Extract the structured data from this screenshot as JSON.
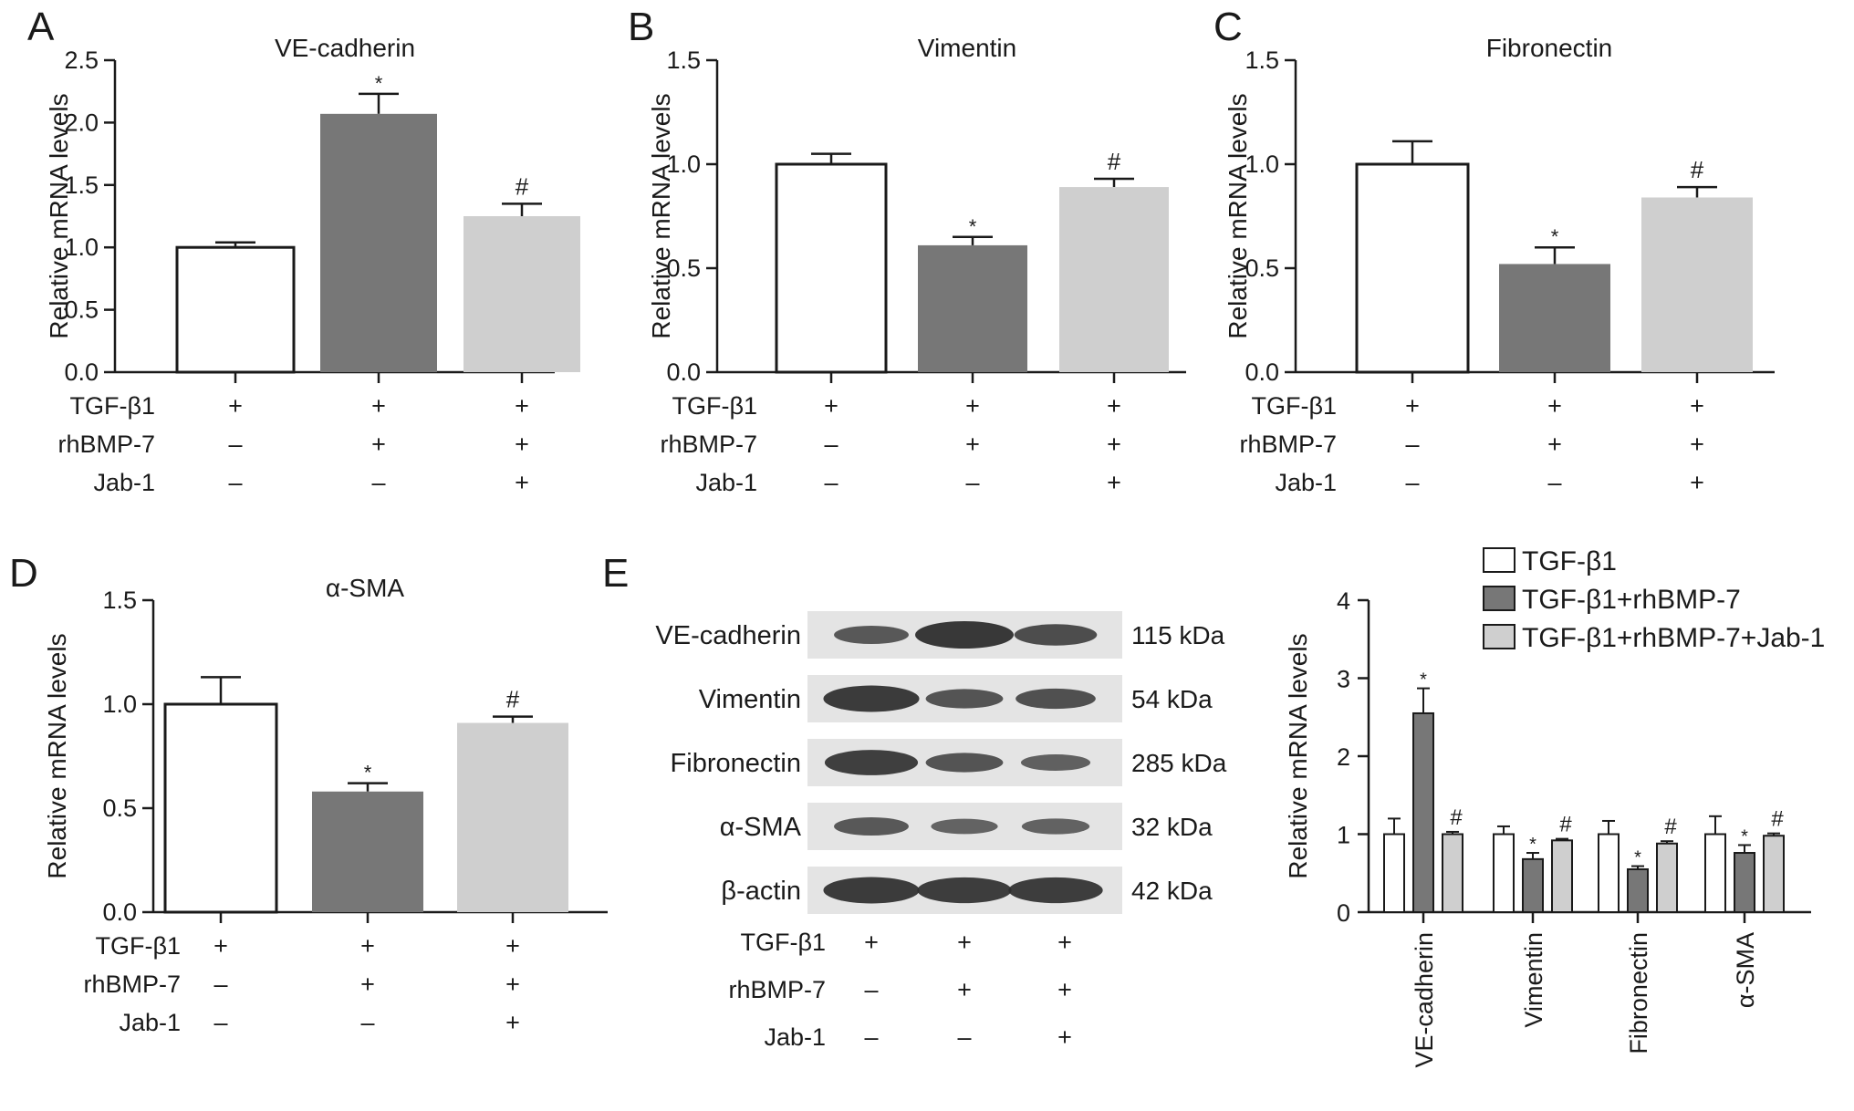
{
  "colors": {
    "white_bar": "#ffffff",
    "dark_bar": "#777777",
    "light_bar": "#cfcfcf",
    "axis": "#1a1a1a",
    "band": "#2e2e2e",
    "blot_bg": "#e4e4e4"
  },
  "condition_labels": [
    "TGF-β1",
    "rhBMP-7",
    "Jab-1"
  ],
  "condition_signs": [
    [
      "+",
      "+",
      "+"
    ],
    [
      "–",
      "+",
      "+"
    ],
    [
      "–",
      "–",
      "+"
    ]
  ],
  "chart_data": [
    {
      "panel": "A",
      "type": "bar",
      "title": "VE-cadherin",
      "ylabel": "Relative mRNA levels",
      "ylim": [
        0,
        2.5
      ],
      "yticks": [
        "0.0",
        "0.5",
        "1.0",
        "1.5",
        "2.0",
        "2.5"
      ],
      "values": [
        1.0,
        2.07,
        1.25
      ],
      "errors": [
        0.04,
        0.16,
        0.1
      ],
      "marks": [
        "",
        "*",
        "#"
      ]
    },
    {
      "panel": "B",
      "type": "bar",
      "title": "Vimentin",
      "ylabel": "Relative mRNA levels",
      "ylim": [
        0,
        1.5
      ],
      "yticks": [
        "0.0",
        "0.5",
        "1.0",
        "1.5"
      ],
      "values": [
        1.0,
        0.61,
        0.89
      ],
      "errors": [
        0.05,
        0.04,
        0.04
      ],
      "marks": [
        "",
        "*",
        "#"
      ]
    },
    {
      "panel": "C",
      "type": "bar",
      "title": "Fibronectin",
      "ylabel": "Relative mRNA levels",
      "ylim": [
        0,
        1.5
      ],
      "yticks": [
        "0.0",
        "0.5",
        "1.0",
        "1.5"
      ],
      "values": [
        1.0,
        0.52,
        0.84
      ],
      "errors": [
        0.11,
        0.08,
        0.05
      ],
      "marks": [
        "",
        "*",
        "#"
      ]
    },
    {
      "panel": "D",
      "type": "bar",
      "title": "α-SMA",
      "ylabel": "Relative mRNA levels",
      "ylim": [
        0,
        1.5
      ],
      "yticks": [
        "0.0",
        "0.5",
        "1.0",
        "1.5"
      ],
      "values": [
        1.0,
        0.58,
        0.91
      ],
      "errors": [
        0.13,
        0.04,
        0.03
      ],
      "marks": [
        "",
        "*",
        "#"
      ]
    },
    {
      "panel": "E",
      "type": "bar",
      "title": "",
      "ylabel": "Relative mRNA levels",
      "ylim": [
        0,
        4
      ],
      "yticks": [
        "0",
        "1",
        "2",
        "3",
        "4"
      ],
      "categories": [
        "VE-cadherin",
        "Vimentin",
        "Fibronectin",
        "α-SMA"
      ],
      "series": [
        {
          "name": "TGF-β1",
          "values": [
            1.0,
            1.0,
            1.0,
            1.0
          ],
          "errors": [
            0.2,
            0.1,
            0.17,
            0.23
          ],
          "marks": [
            "",
            "",
            "",
            ""
          ]
        },
        {
          "name": "TGF-β1+rhBMP-7",
          "values": [
            2.55,
            0.68,
            0.55,
            0.76
          ],
          "errors": [
            0.32,
            0.08,
            0.04,
            0.1
          ],
          "marks": [
            "*",
            "*",
            "*",
            "*"
          ]
        },
        {
          "name": "TGF-β1+rhBMP-7+Jab-1",
          "values": [
            1.0,
            0.92,
            0.88,
            0.98
          ],
          "errors": [
            0.03,
            0.02,
            0.03,
            0.03
          ],
          "marks": [
            "#",
            "#",
            "#",
            "#"
          ]
        }
      ],
      "legend": "top-right"
    }
  ],
  "blot": {
    "proteins": [
      {
        "name": "VE-cadherin",
        "kda": "115 kDa",
        "bands": [
          0.55,
          1.0,
          0.7
        ]
      },
      {
        "name": "Vimentin",
        "kda": "54 kDa",
        "bands": [
          0.95,
          0.6,
          0.65
        ]
      },
      {
        "name": "Fibronectin",
        "kda": "285 kDa",
        "bands": [
          0.9,
          0.6,
          0.45
        ]
      },
      {
        "name": "α-SMA",
        "kda": "32 kDa",
        "bands": [
          0.55,
          0.4,
          0.42
        ]
      },
      {
        "name": "β-actin",
        "kda": "42 kDa",
        "bands": [
          0.95,
          0.92,
          0.92
        ]
      }
    ]
  }
}
